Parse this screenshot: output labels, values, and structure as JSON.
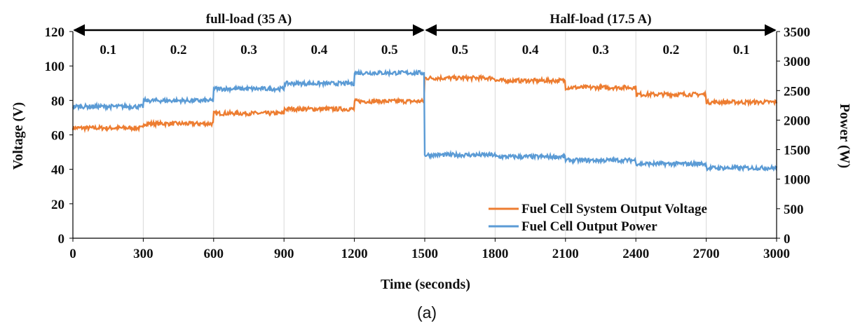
{
  "chart_data": {
    "type": "line",
    "title": "",
    "xlabel": "Time (seconds)",
    "ylabel": "Voltage (V)",
    "y2label": "Power (W)",
    "xlim": [
      0,
      3000
    ],
    "ylim": [
      0,
      120
    ],
    "y2lim": [
      0,
      3500
    ],
    "x_ticks": [
      0,
      300,
      600,
      900,
      1200,
      1500,
      1800,
      2100,
      2400,
      2700,
      3000
    ],
    "y_ticks": [
      0,
      20,
      40,
      60,
      80,
      100,
      120
    ],
    "y2_ticks": [
      0,
      500,
      1000,
      1500,
      2000,
      2500,
      3000,
      3500
    ],
    "grid": "vertical",
    "legend_position": "bottom-right",
    "load_regions": [
      {
        "label": "full-load (35 A)",
        "x": [
          0,
          1500
        ]
      },
      {
        "label": "Half-load (17.5 A)",
        "x": [
          1500,
          3000
        ]
      }
    ],
    "segments": [
      {
        "label": "0.1",
        "x": [
          0,
          300
        ]
      },
      {
        "label": "0.2",
        "x": [
          300,
          600
        ]
      },
      {
        "label": "0.3",
        "x": [
          600,
          900
        ]
      },
      {
        "label": "0.4",
        "x": [
          900,
          1200
        ]
      },
      {
        "label": "0.5",
        "x": [
          1200,
          1500
        ]
      },
      {
        "label": "0.5",
        "x": [
          1500,
          1800
        ]
      },
      {
        "label": "0.4",
        "x": [
          1800,
          2100
        ]
      },
      {
        "label": "0.3",
        "x": [
          2100,
          2400
        ]
      },
      {
        "label": "0.2",
        "x": [
          2400,
          2700
        ]
      },
      {
        "label": "0.1",
        "x": [
          2700,
          3000
        ]
      }
    ],
    "series": [
      {
        "name": "Fuel Cell System Output Voltage",
        "axis": "left",
        "color": "#ED7D31",
        "x": [
          0,
          300,
          600,
          900,
          1200,
          1500,
          1800,
          2100,
          2400,
          2700
        ],
        "values": [
          64,
          66.5,
          72.5,
          75,
          79.5,
          93,
          91.5,
          87.5,
          83.5,
          79
        ],
        "noise": 1.2
      },
      {
        "name": "Fuel Cell Output Power",
        "axis": "right",
        "color": "#5B9BD5",
        "x": [
          0,
          300,
          600,
          900,
          1200,
          1500,
          1800,
          2100,
          2400,
          2700
        ],
        "values": [
          2230,
          2330,
          2530,
          2620,
          2800,
          1410,
          1380,
          1320,
          1260,
          1190
        ],
        "noise": 35
      }
    ]
  },
  "caption": "(a)"
}
